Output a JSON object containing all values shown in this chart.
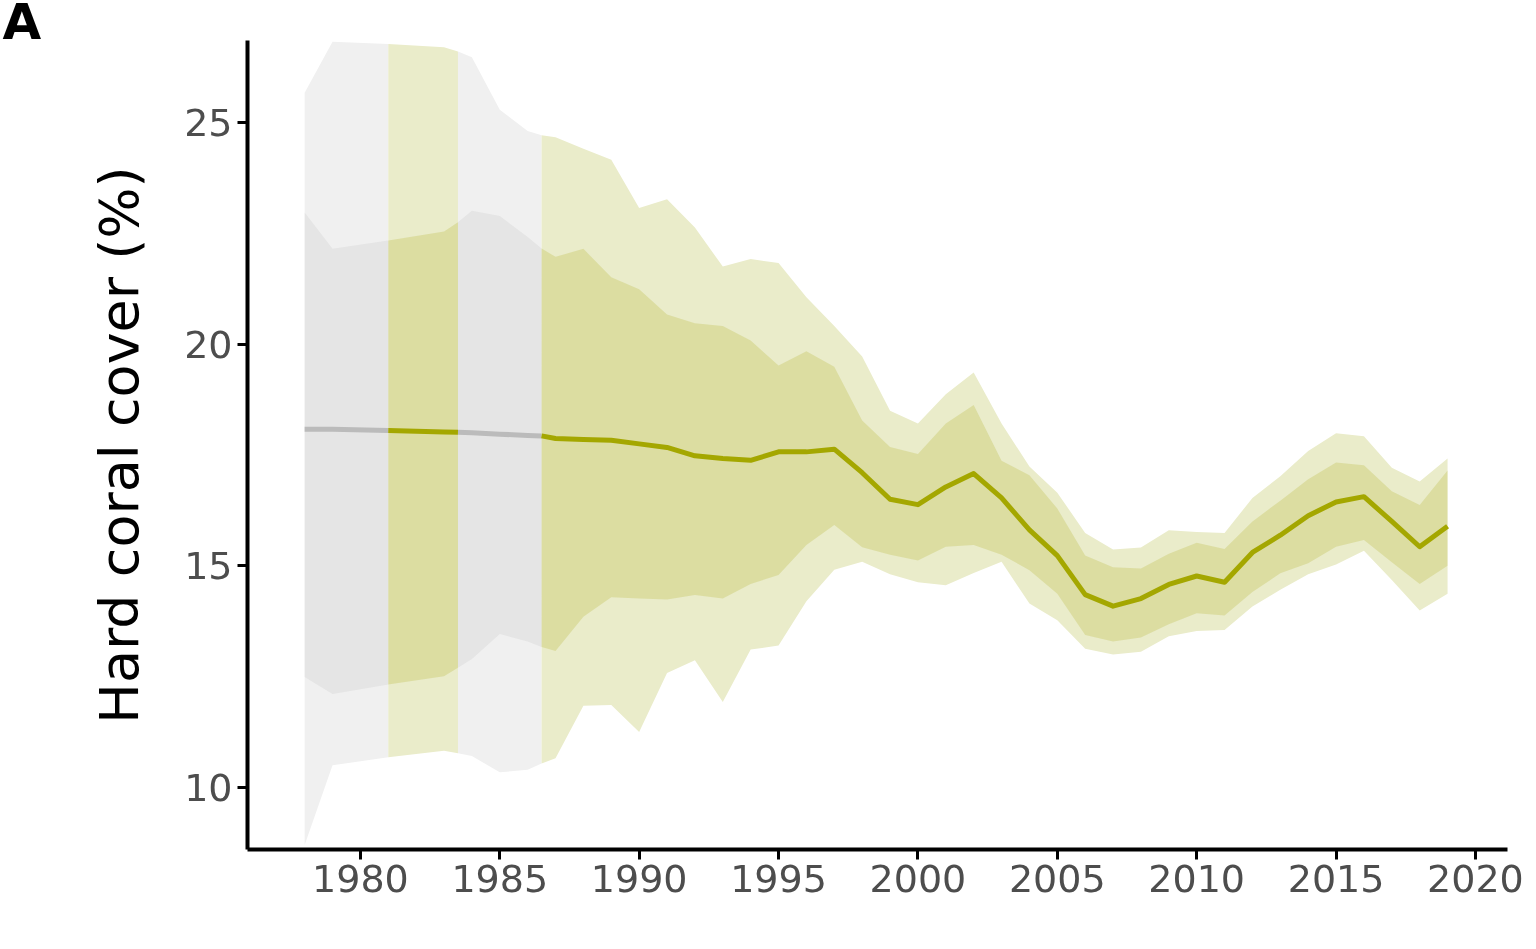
{
  "chart_data": {
    "type": "line",
    "ylabel": "Hard coral cover (%)",
    "annotations": [
      "A"
    ],
    "xlim": [
      1975.95,
      2021.15
    ],
    "ylim": [
      8.6,
      26.85
    ],
    "xticks": [
      1980,
      1985,
      1990,
      1995,
      2000,
      2005,
      2010,
      2015,
      2020
    ],
    "yticks": [
      10,
      15,
      20,
      25
    ],
    "grid": false,
    "series": [
      {
        "color": "#f0f0f0",
        "x": [
          1978,
          1979,
          1981,
          1982,
          1983.5,
          1984,
          1985,
          1986,
          1986.5
        ],
        "values": [
          null,
          null,
          null,
          null,
          null,
          null,
          null,
          null,
          null
        ],
        "lower": [
          8.7,
          10.5,
          10.68,
          null,
          10.77,
          10.71,
          10.34,
          10.4,
          10.54
        ],
        "upper": [
          25.67,
          26.82,
          26.77,
          null,
          26.6,
          26.47,
          25.29,
          24.81,
          24.71
        ]
      },
      {
        "color": "#eaecca",
        "x": [
          1981,
          1983,
          1983.5,
          1985,
          1986.5,
          1987,
          1988,
          1989,
          1990,
          1991,
          1992,
          1993,
          1994,
          1995,
          1996,
          1997,
          1998,
          1999,
          2000,
          2001,
          2002,
          2003,
          2004,
          2005,
          2006,
          2007,
          2008,
          2009,
          2010,
          2011,
          2012,
          2013,
          2014,
          2015,
          2016,
          2017,
          2018,
          2019
        ],
        "values": [
          null,
          null,
          null,
          null,
          null,
          null,
          null,
          null,
          null,
          null,
          null,
          null,
          null,
          null,
          null,
          null,
          null,
          null,
          null,
          null,
          null,
          null,
          null,
          null,
          null,
          null,
          null,
          null,
          null,
          null,
          null,
          null,
          null,
          null,
          null,
          null,
          null,
          null
        ],
        "lower": [
          10.68,
          10.83,
          10.77,
          null,
          10.54,
          10.66,
          11.84,
          11.86,
          11.25,
          12.58,
          12.87,
          11.93,
          13.11,
          13.2,
          14.2,
          14.91,
          15.09,
          14.81,
          14.63,
          14.56,
          14.84,
          15.09,
          14.15,
          13.77,
          13.13,
          13.0,
          13.06,
          13.41,
          13.53,
          13.55,
          14.08,
          14.46,
          14.81,
          15.03,
          15.34,
          14.68,
          13.99,
          14.37
        ],
        "upper": [
          26.77,
          26.7,
          26.6,
          null,
          24.71,
          24.67,
          24.41,
          24.16,
          23.07,
          23.27,
          22.63,
          21.75,
          21.92,
          21.83,
          21.06,
          20.41,
          19.72,
          18.5,
          18.21,
          18.87,
          19.36,
          18.21,
          17.24,
          16.65,
          15.74,
          15.37,
          15.41,
          15.8,
          15.76,
          15.74,
          16.53,
          17.02,
          17.59,
          17.99,
          17.92,
          17.21,
          16.9,
          17.42
        ]
      },
      {
        "color": "#bbbbbb",
        "x": [
          1978,
          1979,
          1981,
          1982,
          1983.5,
          1984,
          1985,
          1986,
          1986.5
        ],
        "values": [
          18.08,
          18.08,
          18.05,
          null,
          18.01,
          18.0,
          17.97,
          17.94,
          17.93
        ],
        "lower": [
          12.49,
          12.11,
          12.32,
          null,
          12.7,
          12.9,
          13.46,
          13.29,
          13.17
        ],
        "upper": [
          22.97,
          22.15,
          22.34,
          null,
          22.75,
          23.01,
          22.89,
          22.42,
          22.16
        ]
      },
      {
        "color": "#a4a700",
        "x": [
          1981,
          1983,
          1983.5,
          1985,
          1986.5,
          1987,
          1988,
          1989,
          1990,
          1991,
          1992,
          1993,
          1994,
          1995,
          1996,
          1997,
          1998,
          1999,
          2000,
          2001,
          2002,
          2003,
          2004,
          2005,
          2006,
          2007,
          2008,
          2009,
          2010,
          2011,
          2012,
          2013,
          2014,
          2015,
          2016,
          2017,
          2018,
          2019
        ],
        "values": [
          18.05,
          18.02,
          18.01,
          null,
          17.93,
          17.87,
          17.85,
          17.83,
          17.75,
          17.67,
          17.48,
          17.42,
          17.38,
          17.57,
          17.57,
          17.63,
          17.1,
          16.5,
          16.38,
          16.78,
          17.08,
          16.53,
          15.81,
          15.23,
          14.35,
          14.09,
          14.26,
          14.58,
          14.77,
          14.63,
          15.3,
          15.69,
          16.13,
          16.44,
          16.56,
          16.0,
          15.43,
          15.89
        ],
        "lower": [
          12.32,
          12.51,
          12.7,
          null,
          13.17,
          13.08,
          13.85,
          14.29,
          14.26,
          14.24,
          14.34,
          14.26,
          14.59,
          14.79,
          15.47,
          15.92,
          15.42,
          15.25,
          15.12,
          15.43,
          15.47,
          15.25,
          14.9,
          14.37,
          13.44,
          13.29,
          13.38,
          13.68,
          13.93,
          13.88,
          14.41,
          14.83,
          15.06,
          15.43,
          15.58,
          15.08,
          14.59,
          15.0
        ],
        "upper": [
          22.34,
          22.54,
          22.75,
          null,
          22.16,
          21.97,
          22.15,
          21.51,
          21.24,
          20.67,
          20.47,
          20.41,
          20.08,
          19.52,
          19.84,
          19.49,
          18.28,
          17.68,
          17.52,
          18.21,
          18.63,
          17.37,
          17.04,
          16.29,
          15.23,
          14.97,
          14.94,
          15.27,
          15.52,
          15.38,
          16.0,
          16.47,
          16.95,
          17.33,
          17.27,
          16.68,
          16.37,
          17.15
        ]
      }
    ]
  }
}
